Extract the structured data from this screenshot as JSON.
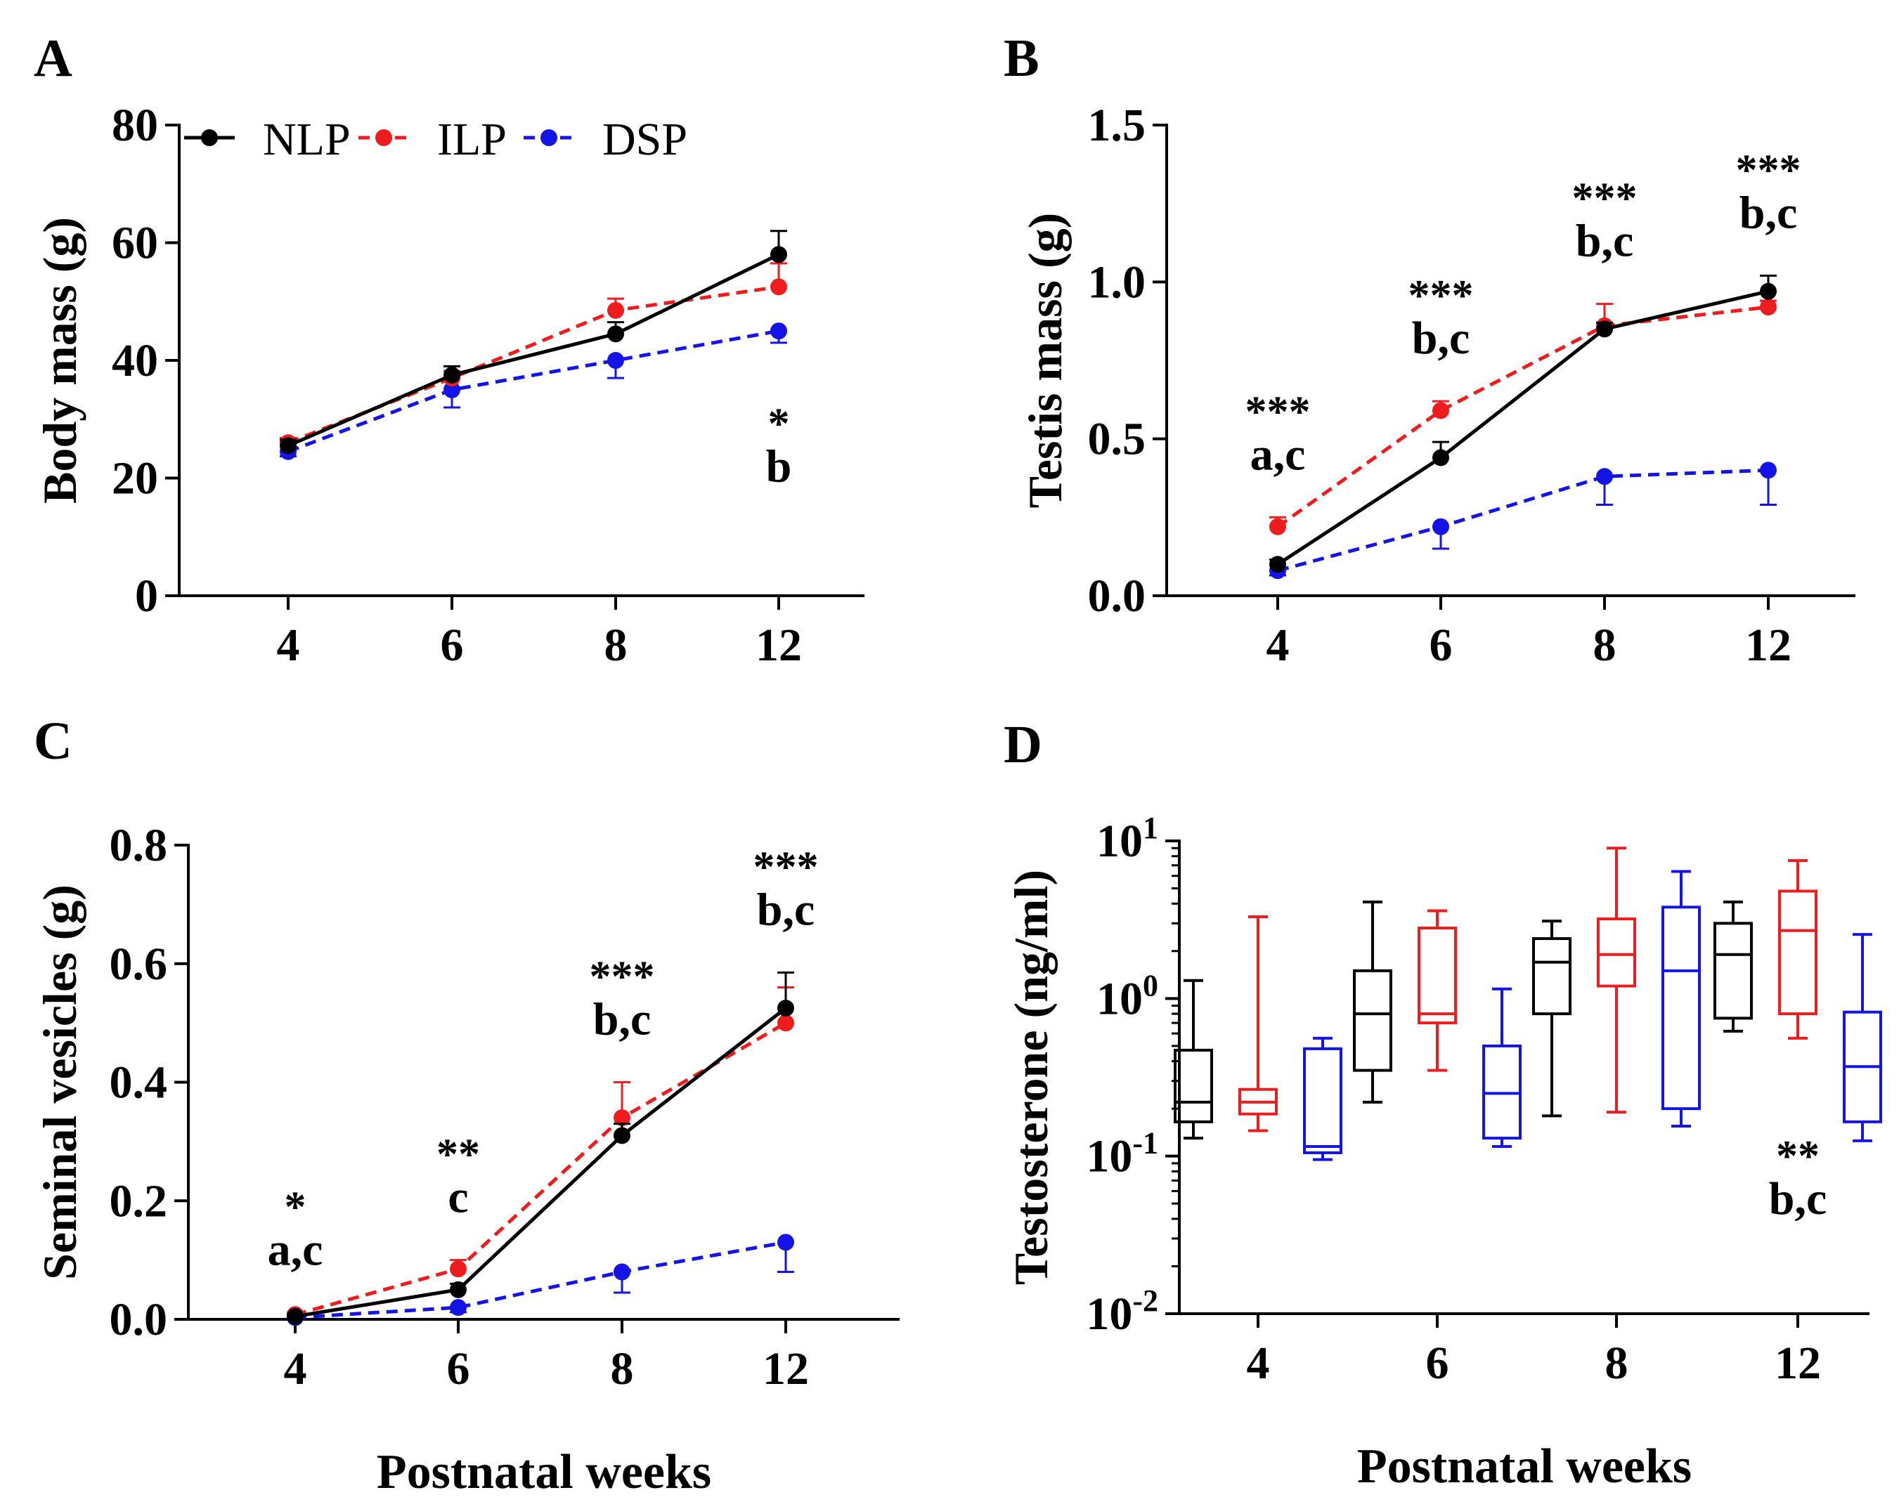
{
  "colors": {
    "NLP": "#000000",
    "ILP": "#ee1c1c",
    "DSP": "#1414e6"
  },
  "chart_data": [
    {
      "panel": "A",
      "type": "line",
      "ylabel": "Body mass (g)",
      "xlabel": "",
      "categories": [
        "4",
        "6",
        "8",
        "12"
      ],
      "ylim": [
        0,
        80
      ],
      "yticks": [
        0,
        20,
        40,
        60,
        80
      ],
      "ytick_labels": [
        "0",
        "20",
        "40",
        "60",
        "80"
      ],
      "legend": [
        "NLP",
        "ILP",
        "DSP"
      ],
      "series": [
        {
          "name": "NLP",
          "values": [
            25.5,
            37.5,
            44.5,
            58.0
          ],
          "err": [
            1.0,
            1.5,
            2.0,
            4.0
          ]
        },
        {
          "name": "ILP",
          "values": [
            26.0,
            37.0,
            48.5,
            52.5
          ],
          "err": [
            0.8,
            1.2,
            2.0,
            4.0
          ]
        },
        {
          "name": "DSP",
          "values": [
            24.5,
            35.0,
            40.0,
            45.0
          ],
          "err": [
            0.8,
            3.0,
            3.0,
            2.0
          ]
        }
      ],
      "annotations": [
        {
          "cat": 3,
          "lines": [
            "*",
            "b"
          ]
        }
      ]
    },
    {
      "panel": "B",
      "type": "line",
      "ylabel": "Testis mass (g)",
      "xlabel": "",
      "categories": [
        "4",
        "6",
        "8",
        "12"
      ],
      "ylim": [
        0,
        1.5
      ],
      "yticks": [
        0,
        0.5,
        1.0,
        1.5
      ],
      "ytick_labels": [
        "0.0",
        "0.5",
        "1.0",
        "1.5"
      ],
      "series": [
        {
          "name": "NLP",
          "values": [
            0.1,
            0.44,
            0.85,
            0.97
          ],
          "err": [
            0.015,
            0.05,
            0.02,
            0.05
          ]
        },
        {
          "name": "ILP",
          "values": [
            0.22,
            0.59,
            0.86,
            0.92
          ],
          "err": [
            0.03,
            0.03,
            0.07,
            0.02
          ]
        },
        {
          "name": "DSP",
          "values": [
            0.08,
            0.22,
            0.38,
            0.4
          ],
          "err": [
            0.015,
            0.07,
            0.09,
            0.11
          ]
        }
      ],
      "annotations": [
        {
          "cat": 0,
          "lines": [
            "***",
            "a,c"
          ]
        },
        {
          "cat": 1,
          "lines": [
            "***",
            "b,c"
          ]
        },
        {
          "cat": 2,
          "lines": [
            "***",
            "b,c"
          ]
        },
        {
          "cat": 3,
          "lines": [
            "***",
            "b,c"
          ]
        }
      ]
    },
    {
      "panel": "C",
      "type": "line",
      "ylabel": "Seminal vesicles (g)",
      "xlabel": "Postnatal weeks",
      "categories": [
        "4",
        "6",
        "8",
        "12"
      ],
      "ylim": [
        0,
        0.8
      ],
      "yticks": [
        0,
        0.2,
        0.4,
        0.6,
        0.8
      ],
      "ytick_labels": [
        "0.0",
        "0.2",
        "0.4",
        "0.6",
        "0.8"
      ],
      "series": [
        {
          "name": "NLP",
          "values": [
            0.005,
            0.05,
            0.31,
            0.525
          ],
          "err": [
            0.003,
            0.01,
            0.02,
            0.06
          ]
        },
        {
          "name": "ILP",
          "values": [
            0.008,
            0.085,
            0.34,
            0.5
          ],
          "err": [
            0.003,
            0.015,
            0.06,
            0.06
          ]
        },
        {
          "name": "DSP",
          "values": [
            0.003,
            0.02,
            0.08,
            0.13
          ],
          "err": [
            0.002,
            0.008,
            0.035,
            0.05
          ]
        }
      ],
      "annotations": [
        {
          "cat": 0,
          "lines": [
            "*",
            "a,c"
          ]
        },
        {
          "cat": 1,
          "lines": [
            "**",
            "c"
          ]
        },
        {
          "cat": 2,
          "lines": [
            "***",
            "b,c"
          ]
        },
        {
          "cat": 3,
          "lines": [
            "***",
            "b,c"
          ]
        }
      ]
    },
    {
      "panel": "D",
      "type": "box",
      "ylabel": "Testosterone (ng/ml)",
      "xlabel": "Postnatal weeks",
      "yscale": "log",
      "categories": [
        "4",
        "6",
        "8",
        "12"
      ],
      "ylim": [
        0.01,
        10
      ],
      "ytick_labels": [
        {
          "base": "10",
          "exp": "-2"
        },
        {
          "base": "10",
          "exp": "-1"
        },
        {
          "base": "10",
          "exp": "0"
        },
        {
          "base": "10",
          "exp": "1"
        }
      ],
      "series": [
        {
          "name": "NLP",
          "boxes": [
            {
              "min": 0.13,
              "q1": 0.165,
              "median": 0.22,
              "q3": 0.47,
              "max": 1.3
            },
            {
              "min": 0.22,
              "q1": 0.35,
              "median": 0.8,
              "q3": 1.5,
              "max": 4.1
            },
            {
              "min": 0.18,
              "q1": 0.8,
              "median": 1.7,
              "q3": 2.4,
              "max": 3.1
            },
            {
              "min": 0.62,
              "q1": 0.75,
              "median": 1.9,
              "q3": 3.0,
              "max": 4.1
            }
          ]
        },
        {
          "name": "ILP",
          "boxes": [
            {
              "min": 0.145,
              "q1": 0.185,
              "median": 0.22,
              "q3": 0.265,
              "max": 3.3
            },
            {
              "min": 0.35,
              "q1": 0.7,
              "median": 0.8,
              "q3": 2.8,
              "max": 3.6
            },
            {
              "min": 0.19,
              "q1": 1.2,
              "median": 1.9,
              "q3": 3.2,
              "max": 9.0
            },
            {
              "min": 0.56,
              "q1": 0.8,
              "median": 2.7,
              "q3": 4.8,
              "max": 7.5
            }
          ]
        },
        {
          "name": "DSP",
          "boxes": [
            {
              "min": 0.095,
              "q1": 0.105,
              "median": 0.115,
              "q3": 0.48,
              "max": 0.56
            },
            {
              "min": 0.115,
              "q1": 0.13,
              "median": 0.25,
              "q3": 0.5,
              "max": 1.15
            },
            {
              "min": 0.155,
              "q1": 0.2,
              "median": 1.5,
              "q3": 3.8,
              "max": 6.4
            },
            {
              "min": 0.125,
              "q1": 0.165,
              "median": 0.37,
              "q3": 0.82,
              "max": 2.55
            }
          ]
        }
      ],
      "annotations": [
        {
          "cat": 3,
          "lines": [
            "**",
            "b,c"
          ]
        }
      ]
    }
  ]
}
